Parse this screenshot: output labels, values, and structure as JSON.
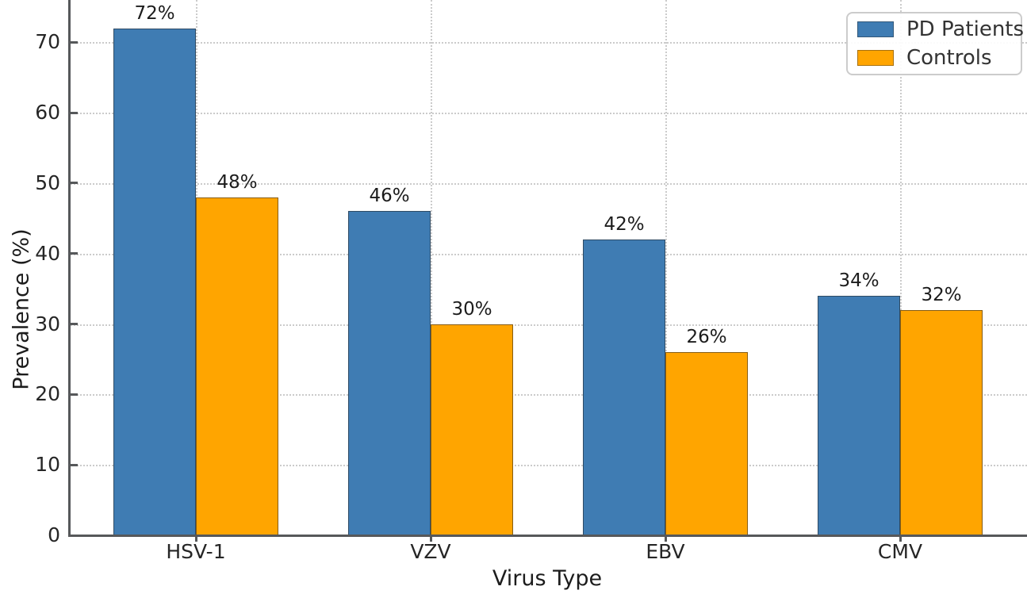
{
  "chart_data": {
    "type": "bar",
    "title": "",
    "categories": [
      "HSV-1",
      "VZV",
      "EBV",
      "CMV"
    ],
    "series": [
      {
        "name": "PD Patients",
        "color": "#3f7cb3",
        "values": [
          72,
          46,
          42,
          34
        ]
      },
      {
        "name": "Controls",
        "color": "#ffa500",
        "values": [
          48,
          30,
          26,
          32
        ]
      }
    ],
    "value_suffix": "%",
    "xlabel": "Virus Type",
    "ylabel": "Prevalence (%)",
    "ylim": [
      0,
      76
    ],
    "yticks": [
      0,
      10,
      20,
      30,
      40,
      50,
      60,
      70
    ],
    "grid": "dotted",
    "legend_position": "upper right",
    "axis_color": "#56585a",
    "grid_color": "#cbcbcb"
  }
}
